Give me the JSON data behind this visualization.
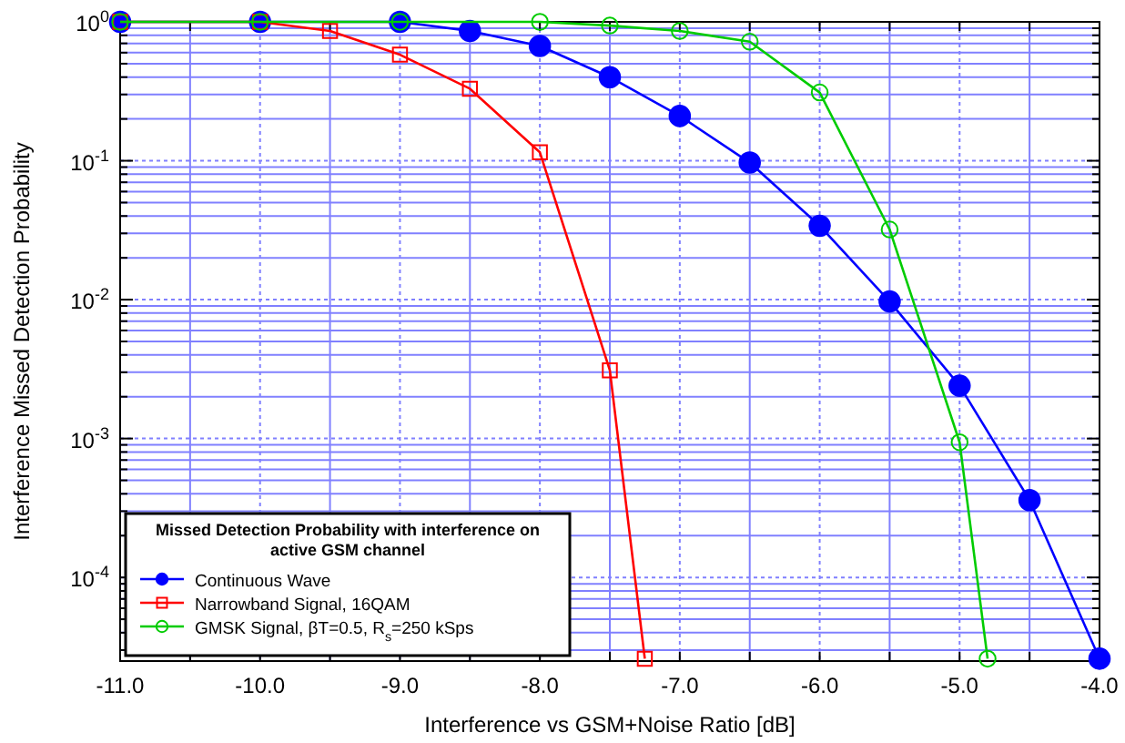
{
  "chart_data": {
    "type": "line",
    "xlabel": "Interference vs GSM+Noise Ratio [dB]",
    "ylabel": "Interference Missed Detection Probability",
    "legend_title": "Missed Detection Probability with interference on active GSM channel",
    "legend": "bottom left",
    "log": true,
    "grid": true,
    "line_style": "solid",
    "xlim": [
      -11,
      -4
    ],
    "xticks": [
      {
        "value": -11,
        "label": "-11.0"
      },
      {
        "value": -10.5,
        "label": null
      },
      {
        "value": -10,
        "label": "-10.0"
      },
      {
        "value": -9.5,
        "label": null
      },
      {
        "value": -9,
        "label": "-9.0"
      },
      {
        "value": -8.5,
        "label": null
      },
      {
        "value": -8,
        "label": "-8.0"
      },
      {
        "value": -7.5,
        "label": null
      },
      {
        "value": -7,
        "label": "-7.0"
      },
      {
        "value": -6.5,
        "label": null
      },
      {
        "value": -6,
        "label": "-6.0"
      },
      {
        "value": -5.5,
        "label": null
      },
      {
        "value": -5,
        "label": "-5.0"
      },
      {
        "value": -4.5,
        "label": null
      },
      {
        "value": -4,
        "label": "-4.0"
      }
    ],
    "ylim": [
      2.5e-05,
      1
    ],
    "yticks": [
      {
        "value": 3e-05,
        "label": null
      },
      {
        "value": 4e-05,
        "label": null
      },
      {
        "value": 5e-05,
        "label": null
      },
      {
        "value": 6e-05,
        "label": null
      },
      {
        "value": 7e-05,
        "label": null
      },
      {
        "value": 8e-05,
        "label": null
      },
      {
        "value": 9e-05,
        "label": null
      },
      {
        "value": 0.0001,
        "label": "10$^{-4}$"
      },
      {
        "value": 0.0002,
        "label": null
      },
      {
        "value": 0.0003,
        "label": null
      },
      {
        "value": 0.0004,
        "label": null
      },
      {
        "value": 0.0005,
        "label": null
      },
      {
        "value": 0.0006,
        "label": null
      },
      {
        "value": 0.0007,
        "label": null
      },
      {
        "value": 0.0008,
        "label": null
      },
      {
        "value": 0.0009,
        "label": null
      },
      {
        "value": 0.001,
        "label": "10$^{-3}$"
      },
      {
        "value": 0.002,
        "label": null
      },
      {
        "value": 0.003,
        "label": null
      },
      {
        "value": 0.004,
        "label": null
      },
      {
        "value": 0.005,
        "label": null
      },
      {
        "value": 0.006,
        "label": null
      },
      {
        "value": 0.007,
        "label": null
      },
      {
        "value": 0.008,
        "label": null
      },
      {
        "value": 0.009,
        "label": null
      },
      {
        "value": 0.01,
        "label": "10$^{-2}$"
      },
      {
        "value": 0.02,
        "label": null
      },
      {
        "value": 0.03,
        "label": null
      },
      {
        "value": 0.04,
        "label": null
      },
      {
        "value": 0.05,
        "label": null
      },
      {
        "value": 0.06,
        "label": null
      },
      {
        "value": 0.07,
        "label": null
      },
      {
        "value": 0.08,
        "label": null
      },
      {
        "value": 0.09,
        "label": null
      },
      {
        "value": 0.1,
        "label": "10$^{-1}$"
      },
      {
        "value": 0.2,
        "label": null
      },
      {
        "value": 0.3,
        "label": null
      },
      {
        "value": 0.4,
        "label": null
      },
      {
        "value": 0.5,
        "label": null
      },
      {
        "value": 0.6,
        "label": null
      },
      {
        "value": 0.7,
        "label": null
      },
      {
        "value": 0.8,
        "label": null
      },
      {
        "value": 0.9,
        "label": null
      },
      {
        "value": 1,
        "label": "10$^{0}$"
      }
    ],
    "series": [
      {
        "name": "Continuous Wave",
        "color": "#0000ff",
        "marker": "circle",
        "x": [
          -11,
          -10,
          -9,
          -8.5,
          -8,
          -7.5,
          -7,
          -6.5,
          -6,
          -5.5,
          -5,
          -4.5,
          -4
        ],
        "values": [
          1,
          1,
          1,
          0.86,
          0.67,
          0.4,
          0.21,
          0.097,
          0.034,
          0.0097,
          0.0024,
          0.00036,
          2.6e-05
        ]
      },
      {
        "name": "Narrowband Signal, 16QAM",
        "color": "#ff0000",
        "marker": "square",
        "x": [
          -11,
          -10,
          -9.5,
          -9,
          -8.5,
          -8,
          -7.5,
          -7.25
        ],
        "values": [
          1,
          1,
          0.86,
          0.58,
          0.33,
          0.115,
          0.0031,
          2.6e-05
        ]
      },
      {
        "name": "GMSK Signal, βT=0.5, R$_{s}$=250 kSps",
        "color": "#00cc00",
        "marker": "circle",
        "x": [
          -11,
          -10,
          -9,
          -8,
          -7.5,
          -7,
          -6.5,
          -6,
          -5.5,
          -5,
          -4.8
        ],
        "values": [
          1,
          1,
          1,
          1,
          0.94,
          0.86,
          0.72,
          0.31,
          0.032,
          0.00094,
          2.6e-05
        ]
      }
    ]
  }
}
